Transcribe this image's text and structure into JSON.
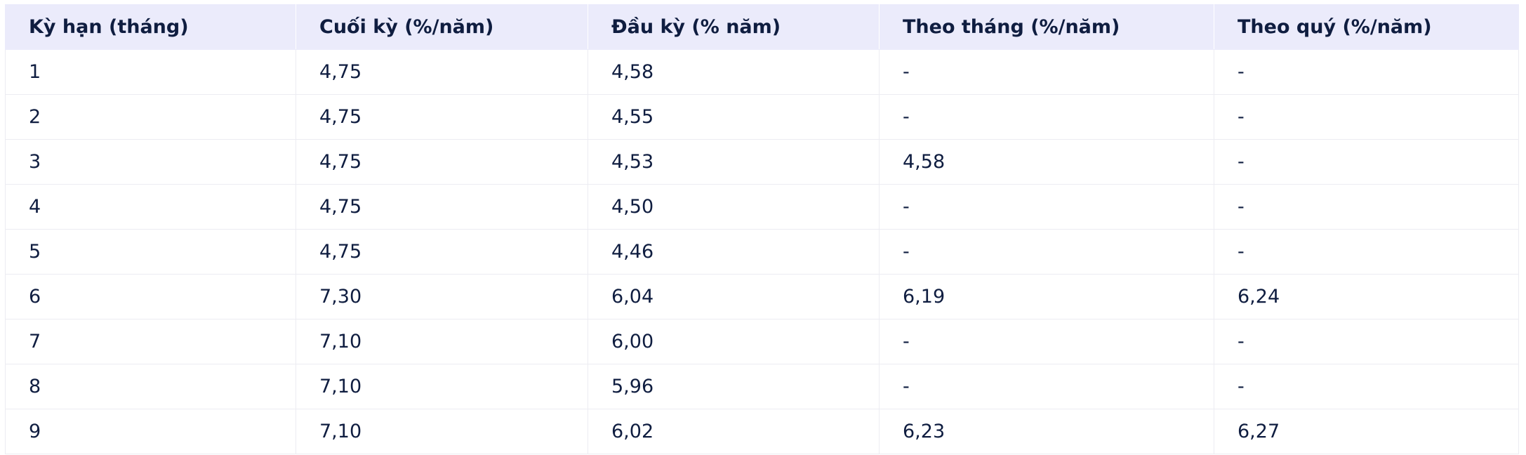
{
  "table": {
    "header": [
      "Kỳ hạn (tháng)",
      "Cuối kỳ (%/năm)",
      "Đầu kỳ (% năm)",
      "Theo tháng (%/năm)",
      "Theo quý (%/năm)"
    ],
    "rows": [
      [
        "1",
        "4,75",
        "4,58",
        "-",
        "-"
      ],
      [
        "2",
        "4,75",
        "4,55",
        "-",
        "-"
      ],
      [
        "3",
        "4,75",
        "4,53",
        "4,58",
        "-"
      ],
      [
        "4",
        "4,75",
        "4,50",
        "-",
        "-"
      ],
      [
        "5",
        "4,75",
        "4,46",
        "-",
        "-"
      ],
      [
        "6",
        "7,30",
        "6,04",
        "6,19",
        "6,24"
      ],
      [
        "7",
        "7,10",
        "6,00",
        "-",
        "-"
      ],
      [
        "8",
        "7,10",
        "5,96",
        "-",
        "-"
      ],
      [
        "9",
        "7,10",
        "6,02",
        "6,23",
        "6,27"
      ]
    ]
  }
}
